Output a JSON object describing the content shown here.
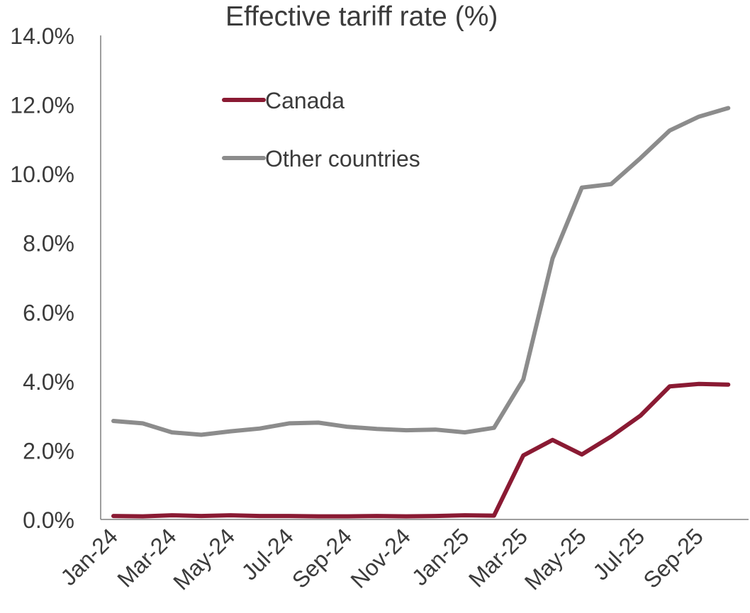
{
  "chart_data": {
    "type": "line",
    "title": "Effective tariff rate (%)",
    "xlabel": "",
    "ylabel": "",
    "ylim": [
      0,
      14
    ],
    "y_ticks": [
      "0.0%",
      "2.0%",
      "4.0%",
      "6.0%",
      "8.0%",
      "10.0%",
      "12.0%",
      "14.0%"
    ],
    "y_tick_values": [
      0,
      2,
      4,
      6,
      8,
      10,
      12,
      14
    ],
    "x": [
      "Jan-24",
      "Feb-24",
      "Mar-24",
      "Apr-24",
      "May-24",
      "Jun-24",
      "Jul-24",
      "Aug-24",
      "Sep-24",
      "Oct-24",
      "Nov-24",
      "Dec-24",
      "Jan-25",
      "Feb-25",
      "Mar-25",
      "Apr-25",
      "May-25",
      "Jun-25",
      "Jul-25",
      "Aug-25",
      "Sep-25",
      "Oct-25"
    ],
    "x_tick_labels": [
      "Jan-24",
      "Mar-24",
      "May-24",
      "Jul-24",
      "Sep-24",
      "Nov-24",
      "Jan-25",
      "Mar-25",
      "May-25",
      "Jul-25",
      "Sep-25"
    ],
    "legend_position": "top-left",
    "grid": false,
    "series": [
      {
        "name": "Canada",
        "color": "#8a1a33",
        "values": [
          0.1,
          0.09,
          0.12,
          0.1,
          0.12,
          0.1,
          0.1,
          0.09,
          0.09,
          0.1,
          0.09,
          0.1,
          0.12,
          0.11,
          1.85,
          2.3,
          1.88,
          2.4,
          3.0,
          3.85,
          3.92,
          3.9
        ]
      },
      {
        "name": "Other countries",
        "color": "#8c8c8c",
        "values": [
          2.85,
          2.78,
          2.52,
          2.45,
          2.55,
          2.63,
          2.78,
          2.8,
          2.68,
          2.62,
          2.58,
          2.6,
          2.52,
          2.65,
          4.05,
          7.55,
          9.6,
          9.7,
          10.45,
          11.25,
          11.65,
          11.9
        ]
      }
    ]
  }
}
